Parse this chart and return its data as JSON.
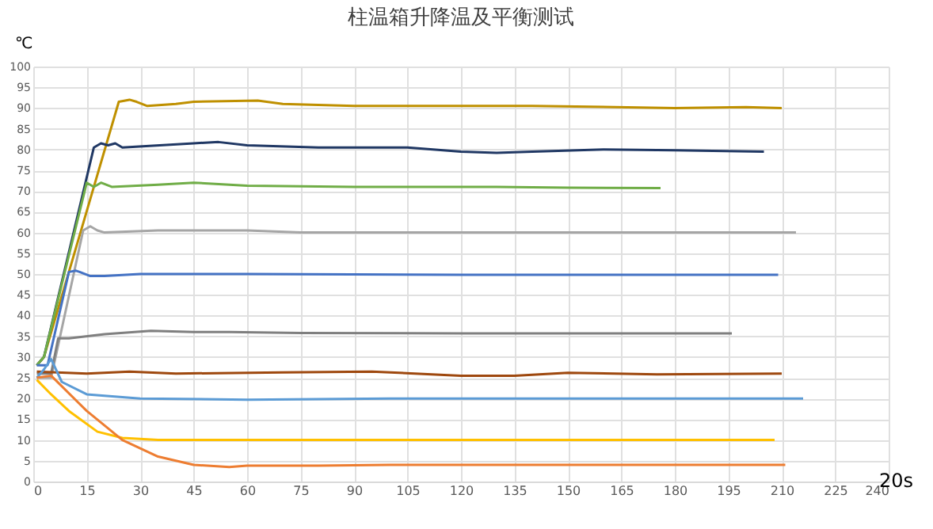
{
  "chart_data": {
    "type": "line",
    "title": "柱温箱升降温及平衡测试",
    "xlabel": "20s",
    "ylabel": "℃",
    "xlim": [
      0,
      240
    ],
    "xticks": [
      0,
      15,
      30,
      45,
      60,
      75,
      90,
      105,
      120,
      135,
      150,
      165,
      180,
      195,
      210,
      225,
      240
    ],
    "ylim": [
      0,
      100
    ],
    "yticks": [
      0,
      5,
      10,
      15,
      20,
      25,
      30,
      35,
      40,
      45,
      50,
      55,
      60,
      65,
      70,
      75,
      80,
      85,
      90,
      95,
      100
    ],
    "grid": true,
    "legend": false,
    "marker": "none",
    "line_style": "solid",
    "series": [
      {
        "color": "#bf9000",
        "x": [
          1,
          3,
          24,
          27,
          29,
          32,
          40,
          45,
          63,
          70,
          90,
          140,
          180,
          200,
          210
        ],
        "values": [
          28,
          30,
          91.5,
          92,
          91.5,
          90.5,
          91,
          91.5,
          91.8,
          91,
          90.5,
          90.5,
          90,
          90.2,
          90
        ]
      },
      {
        "color": "#203864",
        "x": [
          1,
          3,
          17,
          19,
          21,
          23,
          25,
          45,
          52,
          60,
          80,
          105,
          120,
          130,
          140,
          160,
          180,
          205
        ],
        "values": [
          28,
          30,
          80.5,
          81.5,
          81,
          81.5,
          80.5,
          81.5,
          81.8,
          81,
          80.5,
          80.5,
          79.5,
          79.2,
          79.5,
          80,
          79.8,
          79.5
        ]
      },
      {
        "color": "#70ad47",
        "x": [
          1,
          3,
          15,
          17,
          19,
          22,
          35,
          45,
          60,
          90,
          130,
          150,
          176
        ],
        "values": [
          28,
          30,
          72,
          71,
          72,
          71,
          71.5,
          72,
          71.3,
          71,
          71,
          70.8,
          70.7
        ]
      },
      {
        "color": "#a5a5a5",
        "x": [
          1,
          5,
          14,
          16,
          18,
          20,
          35,
          60,
          75,
          214
        ],
        "values": [
          25,
          25,
          60.5,
          61.5,
          60.5,
          60,
          60.5,
          60.5,
          60,
          60
        ]
      },
      {
        "color": "#4472c4",
        "x": [
          1,
          4,
          10,
          12,
          13,
          16,
          20,
          30,
          60,
          120,
          209
        ],
        "values": [
          28,
          28,
          50.5,
          50.8,
          50.5,
          49.5,
          49.5,
          50,
          50,
          49.8,
          49.8
        ]
      },
      {
        "color": "#7f7f7f",
        "x": [
          1,
          5,
          7,
          10,
          20,
          33,
          45,
          55,
          75,
          120,
          196
        ],
        "values": [
          26,
          26,
          34.5,
          34.5,
          35.5,
          36.3,
          36,
          36,
          35.8,
          35.7,
          35.7
        ]
      },
      {
        "color": "#9e480e",
        "x": [
          1,
          15,
          27,
          40,
          70,
          95,
          120,
          135,
          150,
          175,
          210
        ],
        "values": [
          26.5,
          26,
          26.5,
          26,
          26.3,
          26.5,
          25.5,
          25.5,
          26.2,
          25.8,
          26
        ]
      },
      {
        "color": "#5b9bd5",
        "x": [
          1,
          3,
          5,
          8,
          15,
          30,
          60,
          100,
          216
        ],
        "values": [
          25,
          27,
          29.5,
          24,
          21,
          20,
          19.7,
          20,
          20
        ]
      },
      {
        "color": "#ffc000",
        "x": [
          1,
          5,
          10,
          18,
          25,
          35,
          70,
          208
        ],
        "values": [
          24.5,
          21,
          17,
          12,
          10.5,
          10,
          10,
          10
        ]
      },
      {
        "color": "#ed7d31",
        "x": [
          1,
          5,
          15,
          25,
          35,
          45,
          55,
          60,
          80,
          100,
          150,
          211
        ],
        "values": [
          25,
          25.5,
          17,
          10,
          6,
          4,
          3.5,
          3.8,
          3.8,
          4,
          4,
          4
        ]
      }
    ]
  }
}
